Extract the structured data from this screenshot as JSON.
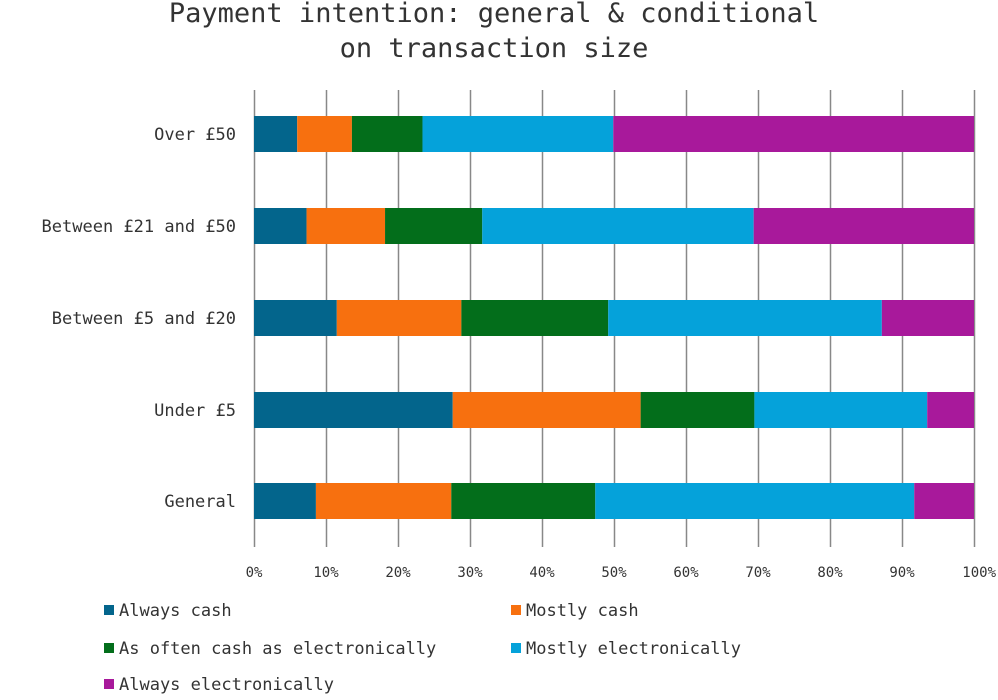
{
  "chart_data": {
    "type": "bar",
    "orientation": "horizontal",
    "stacked": "percent",
    "title": "Payment intention: general & conditional on transaction size",
    "title_lines": [
      "Payment intention: general & conditional",
      "on transaction size"
    ],
    "xlabel": "",
    "ylabel": "",
    "xlim": [
      0,
      100
    ],
    "x_ticks": [
      "0%",
      "10%",
      "20%",
      "30%",
      "40%",
      "50%",
      "60%",
      "70%",
      "80%",
      "90%",
      "100%"
    ],
    "grid": true,
    "legend_position": "bottom",
    "categories": [
      "Over £50",
      "Between £21 and £50",
      "Between £5 and £20",
      "Under £5",
      "General"
    ],
    "series": [
      {
        "name": "Always cash",
        "color": "#03658c",
        "values": [
          6,
          7.3,
          11.5,
          27.6,
          8.6
        ]
      },
      {
        "name": "Mostly cash",
        "color": "#f7700f",
        "values": [
          7.6,
          10.9,
          17.3,
          26.1,
          18.8
        ]
      },
      {
        "name": "As often cash as electronically",
        "color": "#036e1b",
        "values": [
          9.8,
          13.5,
          20.4,
          15.8,
          20
        ]
      },
      {
        "name": "Mostly electronically",
        "color": "#05a2da",
        "values": [
          26.5,
          37.7,
          38,
          24,
          44.3
        ]
      },
      {
        "name": "Always electronically",
        "color": "#a8199b",
        "values": [
          50.1,
          30.6,
          12.8,
          6.5,
          8.3
        ]
      }
    ]
  }
}
